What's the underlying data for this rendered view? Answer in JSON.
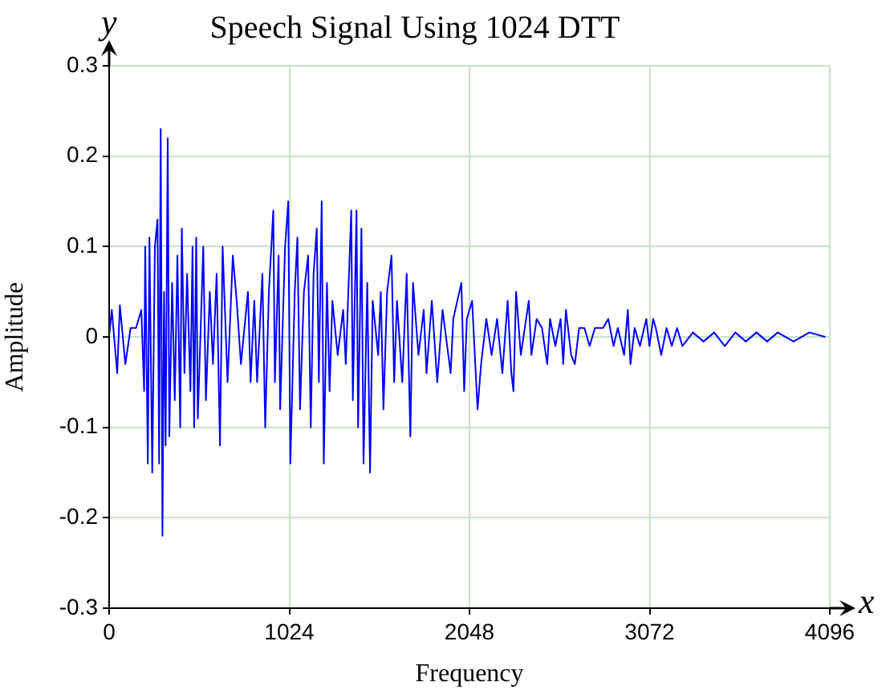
{
  "chart_data": {
    "type": "line",
    "title": "Speech Signal Using 1024 DTT",
    "xlabel": "Frequency",
    "ylabel": "Amplitude",
    "annotations": [
      "y",
      "x"
    ],
    "x": [
      0,
      15,
      46,
      61,
      92,
      122,
      153,
      183,
      199,
      205,
      220,
      229,
      245,
      260,
      275,
      284,
      293,
      303,
      312,
      321,
      333,
      342,
      358,
      373,
      388,
      404,
      413,
      428,
      443,
      462,
      474,
      483,
      495,
      504,
      535,
      550,
      572,
      590,
      611,
      630,
      645,
      673,
      703,
      725,
      749,
      789,
      804,
      825,
      841,
      871,
      887,
      908,
      933,
      942,
      963,
      972,
      1000,
      1018,
      1030,
      1055,
      1070,
      1085,
      1107,
      1131,
      1146,
      1162,
      1180,
      1192,
      1208,
      1220,
      1238,
      1253,
      1269,
      1299,
      1330,
      1345,
      1376,
      1385,
      1406,
      1415,
      1434,
      1446,
      1467,
      1483,
      1498,
      1529,
      1544,
      1559,
      1580,
      1605,
      1620,
      1636,
      1666,
      1691,
      1712,
      1727,
      1758,
      1788,
      1804,
      1834,
      1865,
      1895,
      1941,
      1956,
      2002,
      2018,
      2033,
      2063,
      2094,
      2114,
      2144,
      2174,
      2205,
      2235,
      2265,
      2286,
      2298,
      2313,
      2340,
      2385,
      2400,
      2430,
      2460,
      2490,
      2506,
      2536,
      2566,
      2581,
      2596,
      2626,
      2647,
      2671,
      2701,
      2731,
      2761,
      2807,
      2837,
      2867,
      2891,
      2927,
      2948,
      2963,
      2987,
      3017,
      3053,
      3071,
      3092,
      3107,
      3138,
      3168,
      3198,
      3228,
      3258,
      3318,
      3378,
      3439,
      3499,
      3559,
      3619,
      3679,
      3740,
      3800,
      3890,
      3980,
      4071
    ],
    "series": [
      {
        "color": "#0000ff",
        "values": [
          0,
          0.03,
          -0.04,
          0.035,
          -0.03,
          0.01,
          0.01,
          0.03,
          -0.06,
          0.1,
          -0.14,
          0.11,
          -0.15,
          0.1,
          0.13,
          -0.14,
          0.23,
          -0.22,
          0.05,
          -0.12,
          0.22,
          -0.11,
          0.06,
          -0.07,
          0.09,
          -0.1,
          0.12,
          -0.04,
          0.07,
          -0.06,
          0.1,
          -0.1,
          0.11,
          -0.09,
          0.1,
          -0.07,
          0.05,
          -0.03,
          0.07,
          -0.12,
          0.1,
          -0.05,
          0.09,
          0.04,
          -0.03,
          0.05,
          -0.05,
          0.04,
          -0.05,
          0.07,
          -0.1,
          0.05,
          0.14,
          -0.05,
          0.09,
          -0.08,
          0.1,
          0.15,
          -0.14,
          0.05,
          0.11,
          -0.08,
          0.05,
          0.09,
          -0.1,
          0.07,
          0.12,
          -0.05,
          0.15,
          -0.14,
          0.06,
          -0.06,
          0.04,
          -0.02,
          0.03,
          -0.03,
          0.14,
          -0.07,
          0.14,
          -0.1,
          0.12,
          -0.14,
          0.06,
          -0.15,
          0.04,
          -0.02,
          0.05,
          -0.08,
          0.05,
          0.09,
          -0.05,
          0.04,
          -0.05,
          0.07,
          -0.11,
          0.06,
          -0.02,
          0.03,
          -0.04,
          0.04,
          -0.05,
          0.03,
          -0.04,
          0.02,
          0.06,
          -0.06,
          0.02,
          0.04,
          -0.08,
          -0.03,
          0.02,
          -0.02,
          0.02,
          -0.04,
          0.04,
          -0.04,
          -0.06,
          0.05,
          -0.02,
          0.04,
          -0.02,
          0.02,
          0.01,
          -0.03,
          0.02,
          -0.01,
          0.02,
          -0.03,
          0.03,
          -0.02,
          -0.03,
          0.01,
          0.01,
          -0.01,
          0.01,
          0.01,
          0.02,
          -0.01,
          0.01,
          -0.02,
          0.03,
          -0.03,
          0.01,
          -0.01,
          0.02,
          -0.01,
          0.02,
          0.01,
          -0.02,
          0.01,
          -0.01,
          0.01,
          -0.01,
          0.005,
          -0.005,
          0.005,
          -0.01,
          0.005,
          -0.005,
          0.005,
          -0.005,
          0.005,
          -0.005,
          0.005,
          0
        ]
      }
    ],
    "xlim": [
      0,
      4096
    ],
    "xticks": [
      0,
      1024,
      2048,
      3072,
      4096
    ],
    "ylim": [
      -0.3,
      0.3
    ],
    "yticks": [
      -0.3,
      -0.2,
      -0.1,
      0,
      0.1,
      0.2,
      0.3
    ],
    "grid": true
  }
}
